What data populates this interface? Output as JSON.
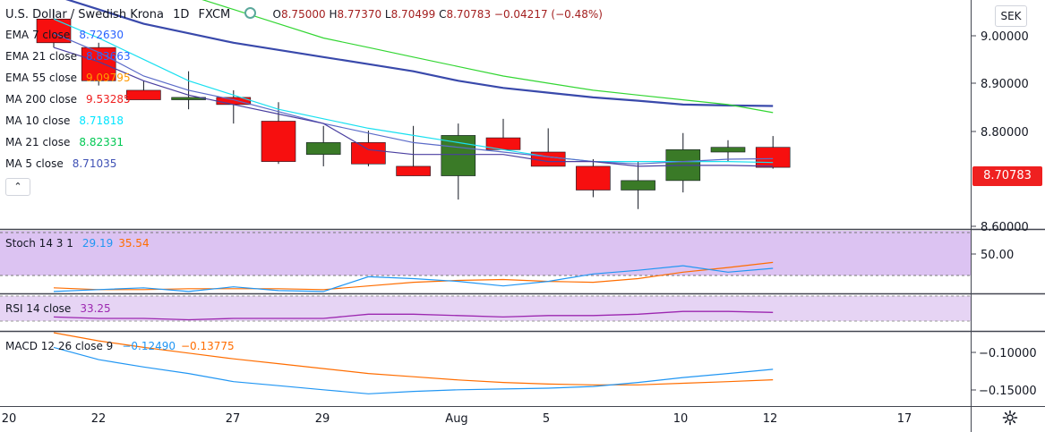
{
  "header": {
    "symbol": "U.S. Dollar / Swedish Krona",
    "interval": "1D",
    "exchange": "FXCM",
    "ohlc": {
      "o_label": "O",
      "o": "8.75000",
      "h_label": "H",
      "h": "8.77370",
      "l_label": "L",
      "l": "8.70499",
      "c_label": "C",
      "c": "8.70783",
      "change": "−0.04217 (−0.48%)"
    }
  },
  "currency_badge": "SEK",
  "last_price_tag": "8.70783",
  "legend": {
    "ema7": {
      "label": "EMA 7 close",
      "value": "8.72630",
      "color": "#2962ff"
    },
    "ema21": {
      "label": "EMA 21 close",
      "value": "8.83663",
      "color": "#2962ff"
    },
    "ema55": {
      "label": "EMA 55 close",
      "value": "9.09795",
      "color": "#ff9800"
    },
    "ma200": {
      "label": "MA 200 close",
      "value": "9.53285",
      "color": "#ef2020"
    },
    "ma10": {
      "label": "MA 10 close",
      "value": "8.71818",
      "color": "#00e5ff"
    },
    "ma21": {
      "label": "MA 21 close",
      "value": "8.82331",
      "color": "#00c853"
    },
    "ma5": {
      "label": "MA 5 close",
      "value": "8.71035",
      "color": "#3f51b5"
    }
  },
  "stoch": {
    "label": "Stoch 14 3 1",
    "k": "29.19",
    "d": "35.54",
    "k_color": "#2196f3",
    "d_color": "#ff6d00"
  },
  "rsi": {
    "label": "RSI 14 close",
    "value": "33.25",
    "color": "#9c27b0"
  },
  "macd": {
    "label": "MACD 12 26 close 9",
    "macd": "−0.12490",
    "signal": "−0.13775",
    "macd_color": "#2196f3",
    "signal_color": "#ff6d00"
  },
  "axes": {
    "price_ticks": [
      "9.00000",
      "8.90000",
      "8.80000",
      "8.60000"
    ],
    "stoch_ticks": [
      "50.00"
    ],
    "macd_ticks": [
      "−0.10000",
      "−0.15000"
    ],
    "date_ticks": [
      "20",
      "22",
      "27",
      "29",
      "Aug",
      "5",
      "10",
      "12",
      "17"
    ]
  },
  "chart_data": {
    "type": "candlestick",
    "x_unit": "trading day",
    "candles": [
      {
        "o": 9.02,
        "h": 9.04,
        "l": 8.96,
        "c": 8.97
      },
      {
        "o": 8.96,
        "h": 8.97,
        "l": 8.88,
        "c": 8.89
      },
      {
        "o": 8.87,
        "h": 8.89,
        "l": 8.85,
        "c": 8.85
      },
      {
        "o": 8.85,
        "h": 8.91,
        "l": 8.83,
        "c": 8.855
      },
      {
        "o": 8.855,
        "h": 8.87,
        "l": 8.8,
        "c": 8.84
      },
      {
        "o": 8.805,
        "h": 8.845,
        "l": 8.715,
        "c": 8.72
      },
      {
        "o": 8.735,
        "h": 8.795,
        "l": 8.71,
        "c": 8.76
      },
      {
        "o": 8.76,
        "h": 8.785,
        "l": 8.71,
        "c": 8.715
      },
      {
        "o": 8.71,
        "h": 8.795,
        "l": 8.69,
        "c": 8.69
      },
      {
        "o": 8.69,
        "h": 8.8,
        "l": 8.64,
        "c": 8.775
      },
      {
        "o": 8.77,
        "h": 8.81,
        "l": 8.745,
        "c": 8.745
      },
      {
        "o": 8.74,
        "h": 8.79,
        "l": 8.71,
        "c": 8.71
      },
      {
        "o": 8.71,
        "h": 8.725,
        "l": 8.645,
        "c": 8.66
      },
      {
        "o": 8.66,
        "h": 8.72,
        "l": 8.62,
        "c": 8.68
      },
      {
        "o": 8.68,
        "h": 8.78,
        "l": 8.655,
        "c": 8.745
      },
      {
        "o": 8.74,
        "h": 8.765,
        "l": 8.72,
        "c": 8.75
      },
      {
        "o": 8.75,
        "h": 8.7737,
        "l": 8.705,
        "c": 8.7078
      }
    ],
    "moving_averages": {
      "ema21": [
        9.07,
        9.04,
        9.01,
        8.99,
        8.97,
        8.955,
        8.94,
        8.925,
        8.91,
        8.89,
        8.875,
        8.865,
        8.855,
        8.848,
        8.84,
        8.838,
        8.837
      ],
      "ma21": [
        9.14,
        9.12,
        9.1,
        9.07,
        9.04,
        9.01,
        8.98,
        8.96,
        8.94,
        8.92,
        8.9,
        8.885,
        8.87,
        8.86,
        8.85,
        8.84,
        8.823
      ],
      "ma10": [
        9.02,
        8.98,
        8.935,
        8.89,
        8.86,
        8.83,
        8.81,
        8.79,
        8.775,
        8.76,
        8.745,
        8.73,
        8.72,
        8.72,
        8.72,
        8.72,
        8.718
      ],
      "ema7": [
        8.99,
        8.95,
        8.9,
        8.87,
        8.85,
        8.825,
        8.8,
        8.78,
        8.76,
        8.75,
        8.74,
        8.73,
        8.72,
        8.715,
        8.72,
        8.725,
        8.726
      ],
      "ma5": [
        8.96,
        8.93,
        8.89,
        8.86,
        8.84,
        8.82,
        8.8,
        8.745,
        8.735,
        8.735,
        8.735,
        8.72,
        8.72,
        8.71,
        8.712,
        8.712,
        8.71
      ]
    },
    "stoch_k": [
      4,
      6,
      8,
      4,
      9,
      5,
      4,
      20,
      18,
      15,
      10,
      15,
      23,
      27,
      32,
      25,
      29.19
    ],
    "stoch_d": [
      8,
      6,
      6,
      7,
      7,
      7,
      6,
      10,
      14,
      16,
      17,
      15,
      14,
      18,
      25,
      30,
      35.54
    ],
    "rsi": [
      30,
      29,
      29,
      28,
      29,
      29,
      29,
      32,
      32,
      31,
      30,
      31,
      31,
      32,
      34,
      34,
      33.25
    ],
    "macd": [
      -0.098,
      -0.113,
      -0.122,
      -0.13,
      -0.14,
      -0.145,
      -0.15,
      -0.155,
      -0.152,
      -0.15,
      -0.149,
      -0.148,
      -0.146,
      -0.141,
      -0.135,
      -0.13,
      -0.1249
    ],
    "macd_signal": [
      -0.08,
      -0.09,
      -0.098,
      -0.105,
      -0.112,
      -0.118,
      -0.124,
      -0.13,
      -0.134,
      -0.138,
      -0.141,
      -0.143,
      -0.144,
      -0.144,
      -0.142,
      -0.14,
      -0.13775
    ],
    "price_range": [
      8.58,
      9.06
    ],
    "stoch_range": [
      0,
      70
    ],
    "rsi_range": [
      20,
      45
    ],
    "macd_range": [
      -0.17,
      -0.08
    ]
  }
}
